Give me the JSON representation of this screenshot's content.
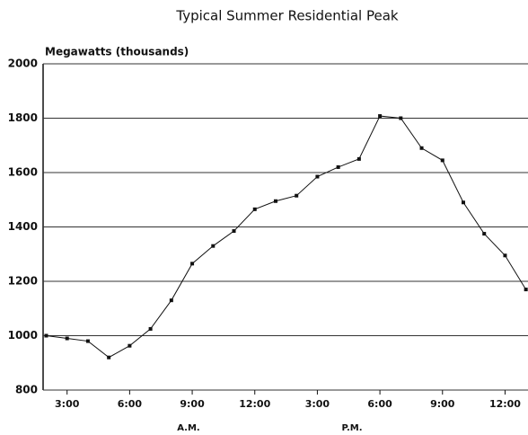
{
  "chart_data": {
    "type": "line",
    "title": "Typical Summer Residential Peak",
    "y_label": "Megawatts (thousands)",
    "annotations": [
      "A.M.",
      "P.M."
    ],
    "x": [
      2,
      3,
      4,
      5,
      6,
      7,
      8,
      9,
      10,
      11,
      12,
      13,
      14,
      15,
      16,
      17,
      18,
      19,
      20,
      21,
      22,
      23,
      24,
      25
    ],
    "values": [
      1000,
      990,
      980,
      920,
      963,
      1025,
      1130,
      1265,
      1330,
      1385,
      1465,
      1495,
      1515,
      1585,
      1620,
      1650,
      1808,
      1800,
      1690,
      1645,
      1490,
      1375,
      1295,
      1170
    ],
    "color": "#111111",
    "xlim": [
      1.85,
      25.1
    ],
    "xticks": [
      {
        "value": 3,
        "label": "3:00"
      },
      {
        "value": 6,
        "label": "6:00"
      },
      {
        "value": 9,
        "label": "9:00"
      },
      {
        "value": 12,
        "label": "12:00"
      },
      {
        "value": 15,
        "label": "3:00"
      },
      {
        "value": 18,
        "label": "6:00"
      },
      {
        "value": 21,
        "label": "9:00"
      },
      {
        "value": 24,
        "label": "12:00"
      }
    ],
    "ylim": [
      800,
      2000
    ],
    "yticks": [
      800,
      1000,
      1200,
      1400,
      1600,
      1800,
      2000
    ],
    "grid": true
  }
}
